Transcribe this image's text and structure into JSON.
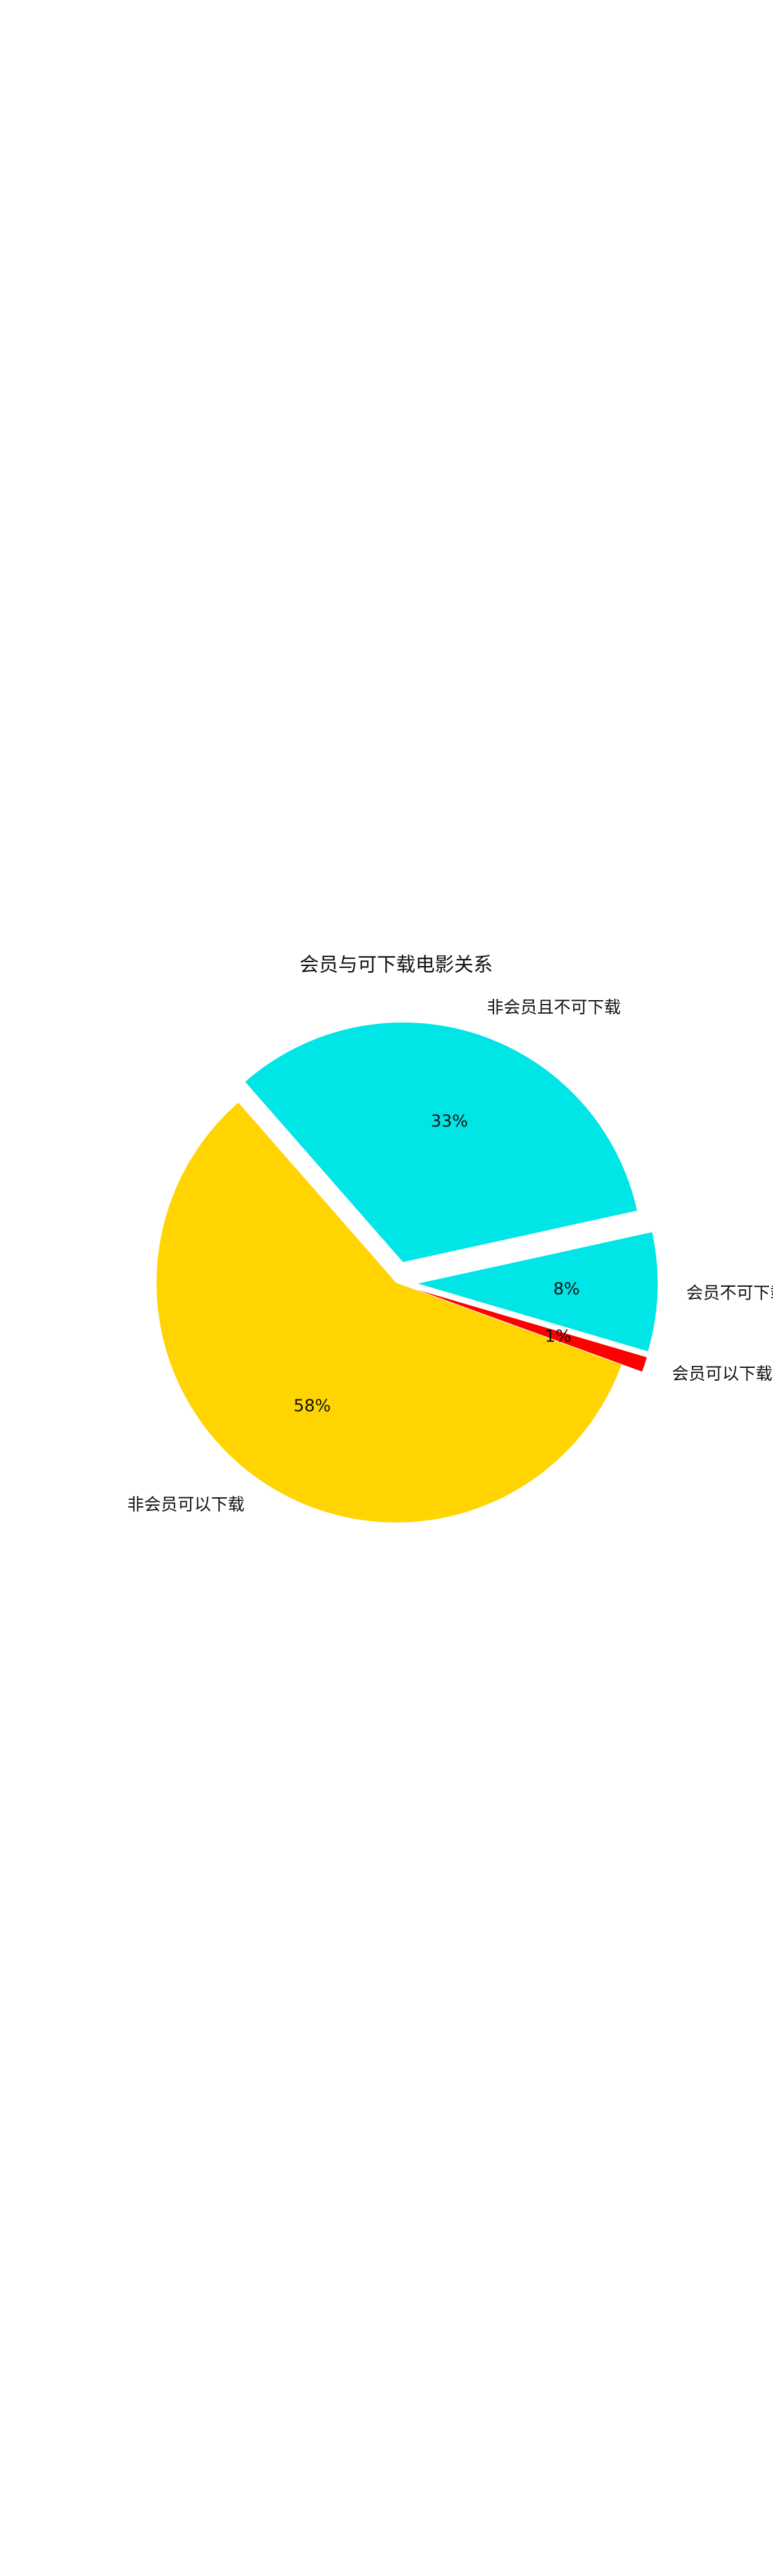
{
  "chart_data": {
    "type": "pie",
    "title": "会员与可下载电影关系",
    "slices": [
      {
        "label": "会员可以下载",
        "value": 1,
        "pct_label": "1%",
        "color": "#ff0000",
        "exploded": true
      },
      {
        "label": "会员不可下载",
        "value": 8,
        "pct_label": "8%",
        "color": "#00e5e5",
        "exploded": true
      },
      {
        "label": "非会员且不可下载",
        "value": 33,
        "pct_label": "33%",
        "color": "#00e5e5",
        "exploded": true
      },
      {
        "label": "非会员可以下载",
        "value": 58,
        "pct_label": "58%",
        "color": "#ffd400",
        "exploded": false
      }
    ],
    "start_angle_deg": -20,
    "direction": "counterclockwise",
    "legend": "none"
  }
}
